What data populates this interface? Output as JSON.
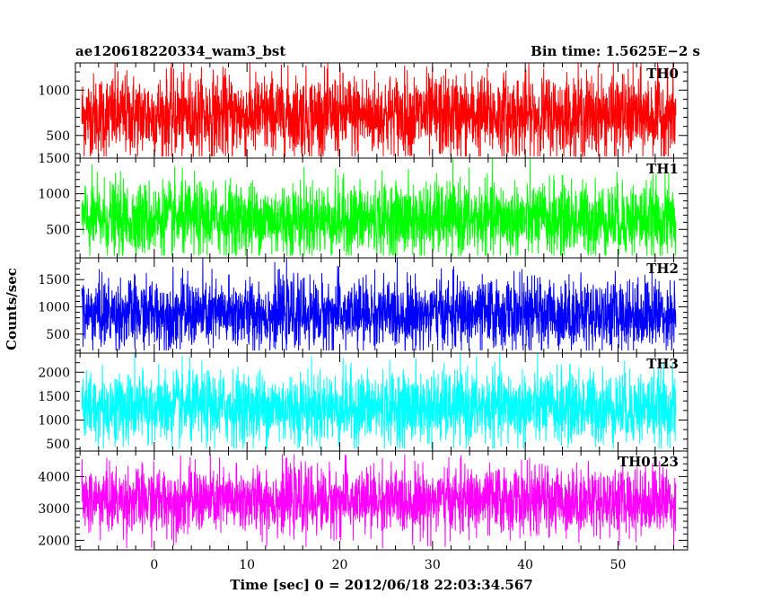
{
  "chart_data": {
    "type": "line",
    "title_left": "ae120618220334_wam3_bst",
    "title_right": "Bin time: 1.5625E−2 s",
    "xlabel": "Time [sec] 0 = 2012/06/18 22:03:34.567",
    "ylabel": "Counts/sec",
    "xlim": [
      -8.5,
      57.5
    ],
    "data_xrange": [
      -7.8,
      56.2
    ],
    "x_ticks": [
      0,
      10,
      20,
      30,
      40,
      50
    ],
    "grid": false,
    "panels": [
      {
        "name": "TH0",
        "color": "#ff0000",
        "ylim": [
          250,
          1300
        ],
        "y_ticks": [
          500,
          1000
        ],
        "extra_tick_label": "1500",
        "mean": 720,
        "noise": 230,
        "min": 270,
        "max": 1300
      },
      {
        "name": "TH1",
        "color": "#00ff00",
        "ylim": [
          100,
          1500
        ],
        "y_ticks": [
          500,
          1000
        ],
        "mean": 640,
        "noise": 260,
        "min": 130,
        "max": 1500
      },
      {
        "name": "TH2",
        "color": "#0000ff",
        "ylim": [
          150,
          1900
        ],
        "y_ticks": [
          500,
          1000,
          1500
        ],
        "mean": 870,
        "noise": 320,
        "min": 200,
        "max": 1900
      },
      {
        "name": "TH3",
        "color": "#00ffff",
        "ylim": [
          350,
          2400
        ],
        "y_ticks": [
          500,
          1000,
          1500,
          2000
        ],
        "mean": 1260,
        "noise": 380,
        "min": 400,
        "max": 2400
      },
      {
        "name": "TH0123",
        "color": "#ff00ff",
        "ylim": [
          1700,
          4800
        ],
        "y_ticks": [
          2000,
          3000,
          4000
        ],
        "mean": 3250,
        "noise": 520,
        "min": 1750,
        "max": 4700
      }
    ]
  }
}
